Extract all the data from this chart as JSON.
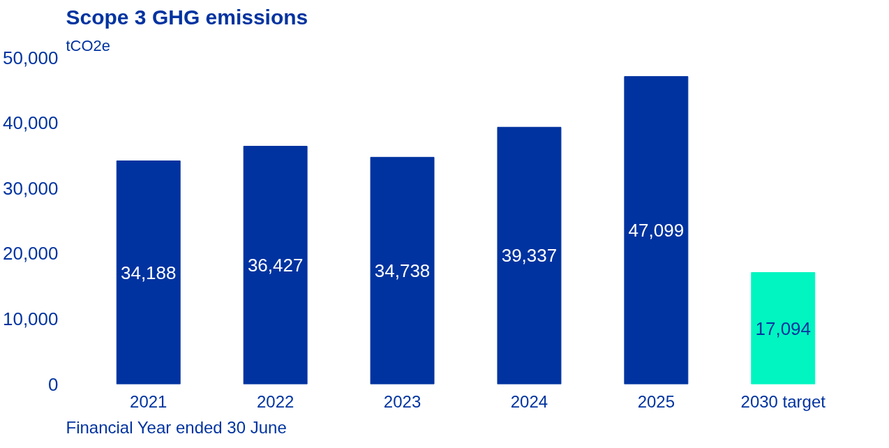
{
  "chart_data": {
    "type": "bar",
    "title": "Scope 3 GHG emissions",
    "ylabel": "tCO2e",
    "xlabel": "Financial Year ended 30 June",
    "categories": [
      "2021",
      "2022",
      "2023",
      "2024",
      "2025",
      "2030 target"
    ],
    "values": [
      34188,
      36427,
      34738,
      39337,
      47099,
      17094
    ],
    "colors": [
      "#0033a0",
      "#0033a0",
      "#0033a0",
      "#0033a0",
      "#0033a0",
      "#00f5c0"
    ],
    "ylim": [
      0,
      50000
    ],
    "yticks": [
      {
        "value": 0,
        "label": "0"
      },
      {
        "value": 10000,
        "label": "10,000"
      },
      {
        "value": 20000,
        "label": "20,000"
      },
      {
        "value": 30000,
        "label": "30,000"
      },
      {
        "value": 40000,
        "label": "40,000"
      },
      {
        "value": 50000,
        "label": "50,000"
      }
    ],
    "value_labels": [
      "34,188",
      "36,427",
      "34,738",
      "39,337",
      "47,099",
      "17,094"
    ],
    "grid": false
  }
}
